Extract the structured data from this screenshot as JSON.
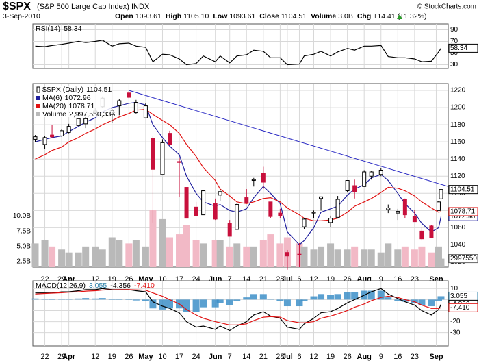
{
  "header": {
    "symbol": "$SPX",
    "description": "(S&P 500 Large Cap Index) INDX",
    "date": "3-Sep-2010",
    "copyright": "© StockCharts.com",
    "stats": [
      {
        "label": "Open",
        "value": "1093.61"
      },
      {
        "label": "High",
        "value": "1105.10"
      },
      {
        "label": "Low",
        "value": "1093.61"
      },
      {
        "label": "Close",
        "value": "1104.51"
      },
      {
        "label": "Volume",
        "value": "3.0B"
      },
      {
        "label": "Chg",
        "value": "+14.41 (+1.32%)"
      }
    ]
  },
  "chart_data": [
    {
      "type": "line",
      "ylim": [
        23.5,
        100
      ],
      "yticks": [
        30,
        50,
        70,
        90
      ],
      "grid": true,
      "x": [
        "2010-03-18",
        "2010-03-22",
        "2010-03-25",
        "2010-03-29",
        "2010-04-01",
        "2010-04-05",
        "2010-04-08",
        "2010-04-12",
        "2010-04-15",
        "2010-04-19",
        "2010-04-22",
        "2010-04-26",
        "2010-04-29",
        "2010-05-03",
        "2010-05-06",
        "2010-05-10",
        "2010-05-13",
        "2010-05-17",
        "2010-05-20",
        "2010-05-24",
        "2010-05-27",
        "2010-06-01",
        "2010-06-03",
        "2010-06-07",
        "2010-06-10",
        "2010-06-14",
        "2010-06-17",
        "2010-06-21",
        "2010-06-24",
        "2010-06-28",
        "2010-07-01",
        "2010-07-06",
        "2010-07-08",
        "2010-07-12",
        "2010-07-15",
        "2010-07-19",
        "2010-07-22",
        "2010-07-26",
        "2010-07-29",
        "2010-08-02",
        "2010-08-05",
        "2010-08-09",
        "2010-08-12",
        "2010-08-16",
        "2010-08-19",
        "2010-08-23",
        "2010-08-26",
        "2010-08-30",
        "2010-09-02",
        "2010-09-03"
      ],
      "series": [
        {
          "name": "RSI(14)",
          "color": "#000000",
          "values": [
            62,
            61,
            63,
            65,
            67,
            70,
            68,
            70,
            72,
            62,
            66,
            67,
            62,
            60,
            35,
            48,
            47,
            40,
            30,
            32,
            45,
            35,
            45,
            33,
            45,
            47,
            55,
            53,
            42,
            42,
            30,
            31,
            45,
            48,
            53,
            45,
            52,
            58,
            55,
            62,
            62,
            63,
            44,
            42,
            42,
            40,
            35,
            36,
            52,
            58.34
          ]
        }
      ]
    },
    {
      "type": "candlestick",
      "name": "$SPX (Daily)",
      "xlim": [
        "2010-03-17",
        "2010-09-06"
      ],
      "ylim": [
        1014,
        1228
      ],
      "yticks": [
        1020,
        1040,
        1060,
        1080,
        1100,
        1120,
        1140,
        1160,
        1180,
        1200,
        1220
      ],
      "grid": true,
      "up_color": "#000000",
      "down_color": "#c8103c",
      "x": [
        "2010-03-18",
        "2010-03-22",
        "2010-03-25",
        "2010-03-29",
        "2010-04-01",
        "2010-04-05",
        "2010-04-08",
        "2010-04-12",
        "2010-04-15",
        "2010-04-19",
        "2010-04-22",
        "2010-04-26",
        "2010-04-29",
        "2010-05-03",
        "2010-05-06",
        "2010-05-10",
        "2010-05-13",
        "2010-05-17",
        "2010-05-20",
        "2010-05-24",
        "2010-05-27",
        "2010-06-01",
        "2010-06-03",
        "2010-06-07",
        "2010-06-10",
        "2010-06-14",
        "2010-06-17",
        "2010-06-21",
        "2010-06-24",
        "2010-06-28",
        "2010-07-01",
        "2010-07-06",
        "2010-07-08",
        "2010-07-12",
        "2010-07-15",
        "2010-07-19",
        "2010-07-22",
        "2010-07-26",
        "2010-07-29",
        "2010-08-02",
        "2010-08-05",
        "2010-08-09",
        "2010-08-12",
        "2010-08-16",
        "2010-08-19",
        "2010-08-23",
        "2010-08-26",
        "2010-08-30",
        "2010-09-02",
        "2010-09-03"
      ],
      "open": [
        1163,
        1157,
        1168,
        1167,
        1171,
        1179,
        1181,
        1194,
        1201,
        1192,
        1202,
        1217,
        1194,
        1188,
        1164,
        1122,
        1170,
        1137,
        1107,
        1084,
        1075,
        1088,
        1098,
        1065,
        1058,
        1095,
        1115,
        1123,
        1090,
        1077,
        1031,
        1029,
        1061,
        1077,
        1094,
        1066,
        1072,
        1103,
        1109,
        1108,
        1120,
        1122,
        1081,
        1077,
        1093,
        1073,
        1056,
        1062,
        1080,
        1093.61
      ],
      "high": [
        1168,
        1167,
        1180,
        1175,
        1181,
        1188,
        1189,
        1200,
        1213,
        1198,
        1210,
        1219,
        1209,
        1205,
        1167,
        1163,
        1173,
        1141,
        1107,
        1090,
        1104,
        1094,
        1105,
        1069,
        1088,
        1105,
        1118,
        1131,
        1090,
        1082,
        1034,
        1042,
        1071,
        1080,
        1096,
        1074,
        1097,
        1115,
        1116,
        1127,
        1126,
        1129,
        1087,
        1082,
        1094,
        1081,
        1061,
        1063,
        1091,
        1105.1
      ],
      "low": [
        1160,
        1152,
        1165,
        1166,
        1170,
        1179,
        1176,
        1194,
        1200,
        1182,
        1191,
        1211,
        1193,
        1188,
        1066,
        1122,
        1156,
        1096,
        1071,
        1073,
        1075,
        1069,
        1091,
        1050,
        1058,
        1089,
        1108,
        1105,
        1071,
        1071,
        1011,
        1014,
        1058,
        1071,
        1080,
        1061,
        1072,
        1101,
        1094,
        1108,
        1116,
        1120,
        1077,
        1069,
        1071,
        1067,
        1045,
        1048,
        1080,
        1093.61
      ],
      "close": [
        1166,
        1165,
        1166,
        1173,
        1178,
        1187,
        1187,
        1196,
        1211,
        1197,
        1208,
        1212,
        1206,
        1202,
        1128,
        1159,
        1157,
        1136,
        1071,
        1074,
        1103,
        1070,
        1102,
        1050,
        1087,
        1089,
        1116,
        1113,
        1073,
        1074,
        1027,
        1028,
        1070,
        1078,
        1096,
        1071,
        1093,
        1115,
        1102,
        1125,
        1125,
        1127,
        1083,
        1079,
        1075,
        1067,
        1047,
        1048,
        1090,
        1104.51
      ],
      "trendline": {
        "x": [
          "2010-04-26",
          "2010-09-06"
        ],
        "values": [
          1220,
          1108
        ],
        "color": "#2b2bc4"
      },
      "y2lim": [
        1600000000,
        31800000000
      ],
      "y2ticks": [
        {
          "value": 2500000000,
          "label": "2.5B"
        },
        {
          "value": 5000000000,
          "label": "5.0B"
        },
        {
          "value": 7500000000,
          "label": "7.5B"
        },
        {
          "value": 10000000000,
          "label": "10.0B"
        }
      ],
      "series": [
        {
          "name": "MA(6)",
          "color": "#1f1f9e",
          "values": [
            1160,
            1163,
            1165,
            1167,
            1172,
            1178,
            1183,
            1188,
            1195,
            1200,
            1202,
            1205,
            1206,
            1203,
            1180,
            1165,
            1155,
            1145,
            1120,
            1100,
            1090,
            1085,
            1087,
            1080,
            1078,
            1082,
            1095,
            1108,
            1100,
            1088,
            1055,
            1040,
            1045,
            1060,
            1078,
            1082,
            1085,
            1098,
            1105,
            1110,
            1118,
            1122,
            1115,
            1100,
            1088,
            1077,
            1065,
            1055,
            1060,
            1072.96
          ]
        },
        {
          "name": "MA(20)",
          "color": "#e01010",
          "values": [
            1140,
            1145,
            1150,
            1154,
            1160,
            1165,
            1170,
            1175,
            1180,
            1185,
            1189,
            1193,
            1197,
            1198,
            1192,
            1185,
            1180,
            1170,
            1157,
            1143,
            1130,
            1115,
            1105,
            1097,
            1090,
            1088,
            1090,
            1094,
            1095,
            1090,
            1083,
            1075,
            1071,
            1068,
            1068,
            1069,
            1071,
            1078,
            1085,
            1090,
            1094,
            1101,
            1107,
            1106,
            1103,
            1097,
            1090,
            1083,
            1078,
            1078.71
          ]
        },
        {
          "name": "Volume",
          "type": "bar",
          "axis": "y2",
          "color": "#b9b9b9",
          "down_color": "#f2b9c6",
          "legend_label": "2,997,550,336",
          "tag_label": "2997550",
          "values": [
            5500000000,
            6000000000,
            5000000000,
            4500000000,
            4000000000,
            4000000000,
            5000000000,
            5000000000,
            4500000000,
            6500000000,
            6000000000,
            5500000000,
            6000000000,
            5000000000,
            11000000000,
            9500000000,
            6500000000,
            7000000000,
            8500000000,
            6000000000,
            5500000000,
            6000000000,
            6000000000,
            5000000000,
            5500000000,
            5000000000,
            5000000000,
            6000000000,
            7000000000,
            5500000000,
            6500000000,
            5500000000,
            5000000000,
            4500000000,
            5000000000,
            5500000000,
            4500000000,
            4500000000,
            5000000000,
            4500000000,
            4500000000,
            4000000000,
            5500000000,
            4500000000,
            5000000000,
            4500000000,
            5000000000,
            4000000000,
            5000000000,
            2997550336
          ]
        }
      ],
      "xticks": [
        {
          "value": "2010-03-22",
          "label": "22"
        },
        {
          "value": "2010-03-29",
          "label": "29"
        },
        {
          "value": "2010-04-01",
          "label": "Apr"
        },
        {
          "value": "2010-04-12",
          "label": "12"
        },
        {
          "value": "2010-04-19",
          "label": "19"
        },
        {
          "value": "2010-04-26",
          "label": "26"
        },
        {
          "value": "2010-05-03",
          "label": "May"
        },
        {
          "value": "2010-05-10",
          "label": "10"
        },
        {
          "value": "2010-05-17",
          "label": "17"
        },
        {
          "value": "2010-05-24",
          "label": "24"
        },
        {
          "value": "2010-06-01",
          "label": "Jun"
        },
        {
          "value": "2010-06-07",
          "label": "7"
        },
        {
          "value": "2010-06-14",
          "label": "14"
        },
        {
          "value": "2010-06-21",
          "label": "21"
        },
        {
          "value": "2010-06-28",
          "label": "28"
        },
        {
          "value": "2010-07-01",
          "label": "Jul"
        },
        {
          "value": "2010-07-06",
          "label": "6"
        },
        {
          "value": "2010-07-12",
          "label": "12"
        },
        {
          "value": "2010-07-19",
          "label": "19"
        },
        {
          "value": "2010-07-26",
          "label": "26"
        },
        {
          "value": "2010-08-02",
          "label": "Aug"
        },
        {
          "value": "2010-08-09",
          "label": "9"
        },
        {
          "value": "2010-08-16",
          "label": "16"
        },
        {
          "value": "2010-08-23",
          "label": "23"
        },
        {
          "value": "2010-09-01",
          "label": "Sep"
        }
      ]
    },
    {
      "type": "line",
      "name": "MACD(12,26,9)",
      "ylim": [
        -42,
        17
      ],
      "yticks": [
        10,
        0,
        -10,
        -20,
        -30
      ],
      "grid": true,
      "x": [
        "2010-03-18",
        "2010-03-22",
        "2010-03-25",
        "2010-03-29",
        "2010-04-01",
        "2010-04-05",
        "2010-04-08",
        "2010-04-12",
        "2010-04-15",
        "2010-04-19",
        "2010-04-22",
        "2010-04-26",
        "2010-04-29",
        "2010-05-03",
        "2010-05-06",
        "2010-05-10",
        "2010-05-13",
        "2010-05-17",
        "2010-05-20",
        "2010-05-24",
        "2010-05-27",
        "2010-06-01",
        "2010-06-03",
        "2010-06-07",
        "2010-06-10",
        "2010-06-14",
        "2010-06-17",
        "2010-06-21",
        "2010-06-24",
        "2010-06-28",
        "2010-07-01",
        "2010-07-06",
        "2010-07-08",
        "2010-07-12",
        "2010-07-15",
        "2010-07-19",
        "2010-07-22",
        "2010-07-26",
        "2010-07-29",
        "2010-08-02",
        "2010-08-05",
        "2010-08-09",
        "2010-08-12",
        "2010-08-16",
        "2010-08-19",
        "2010-08-23",
        "2010-08-26",
        "2010-08-30",
        "2010-09-02",
        "2010-09-03"
      ],
      "series": [
        {
          "type": "bar",
          "color": "#3d8fc8",
          "values": [
            1,
            0.5,
            0.2,
            0.8,
            0.4,
            1,
            1.4,
            1,
            1.4,
            0.2,
            0.1,
            0,
            -0.8,
            -1.5,
            -8,
            -9,
            -8,
            -8,
            -11,
            -11,
            -7,
            -7,
            -3,
            -5,
            -1,
            2,
            5,
            5,
            0.5,
            -1,
            -6,
            -6,
            -1,
            3,
            5,
            4,
            5,
            7,
            7,
            8,
            8,
            8,
            2,
            -1,
            -2,
            -3,
            -5,
            -6,
            -1,
            3.055
          ]
        },
        {
          "type": "line",
          "color": "#000000",
          "values": [
            6,
            6,
            6,
            7,
            7,
            8,
            9,
            9,
            10,
            9,
            9,
            9,
            8,
            7,
            -2,
            -6,
            -8,
            -12,
            -20,
            -25,
            -24,
            -27,
            -24,
            -28,
            -24,
            -20,
            -14,
            -11,
            -15,
            -17,
            -25,
            -27,
            -22,
            -17,
            -12,
            -11,
            -8,
            -3,
            0,
            4,
            7,
            10,
            5,
            1,
            -2,
            -5,
            -10,
            -14,
            -9,
            -4.356
          ]
        },
        {
          "type": "line",
          "color": "#e01010",
          "values": [
            5,
            5.5,
            5.8,
            6.2,
            6.6,
            7,
            7.6,
            8,
            8.6,
            8.8,
            8.9,
            9,
            8.8,
            8.5,
            6,
            3,
            0,
            -4,
            -9,
            -14,
            -17,
            -20,
            -21,
            -23,
            -23,
            -22,
            -19,
            -16,
            -15.5,
            -16,
            -19,
            -21,
            -21,
            -20,
            -17,
            -15,
            -13,
            -10,
            -7,
            -4,
            -1,
            2,
            3,
            2,
            0,
            -2,
            -5,
            -8,
            -8,
            -7.41
          ],
          "last_label": "-7.410"
        }
      ],
      "xticks": [
        {
          "value": "2010-03-22",
          "label": "22"
        },
        {
          "value": "2010-03-29",
          "label": "29"
        },
        {
          "value": "2010-04-01",
          "label": "Apr"
        },
        {
          "value": "2010-04-12",
          "label": "12"
        },
        {
          "value": "2010-04-19",
          "label": "19"
        },
        {
          "value": "2010-04-26",
          "label": "26"
        },
        {
          "value": "2010-05-03",
          "label": "May"
        },
        {
          "value": "2010-05-10",
          "label": "10"
        },
        {
          "value": "2010-05-17",
          "label": "17"
        },
        {
          "value": "2010-05-24",
          "label": "24"
        },
        {
          "value": "2010-06-01",
          "label": "Jun"
        },
        {
          "value": "2010-06-07",
          "label": "7"
        },
        {
          "value": "2010-06-14",
          "label": "14"
        },
        {
          "value": "2010-06-21",
          "label": "21"
        },
        {
          "value": "2010-06-28",
          "label": "28"
        },
        {
          "value": "2010-07-01",
          "label": "Jul"
        },
        {
          "value": "2010-07-06",
          "label": "6"
        },
        {
          "value": "2010-07-12",
          "label": "12"
        },
        {
          "value": "2010-07-19",
          "label": "19"
        },
        {
          "value": "2010-07-26",
          "label": "26"
        },
        {
          "value": "2010-08-02",
          "label": "Aug"
        },
        {
          "value": "2010-08-09",
          "label": "9"
        },
        {
          "value": "2010-08-16",
          "label": "16"
        },
        {
          "value": "2010-08-23",
          "label": "23"
        },
        {
          "value": "2010-09-01",
          "label": "Sep"
        }
      ]
    }
  ]
}
